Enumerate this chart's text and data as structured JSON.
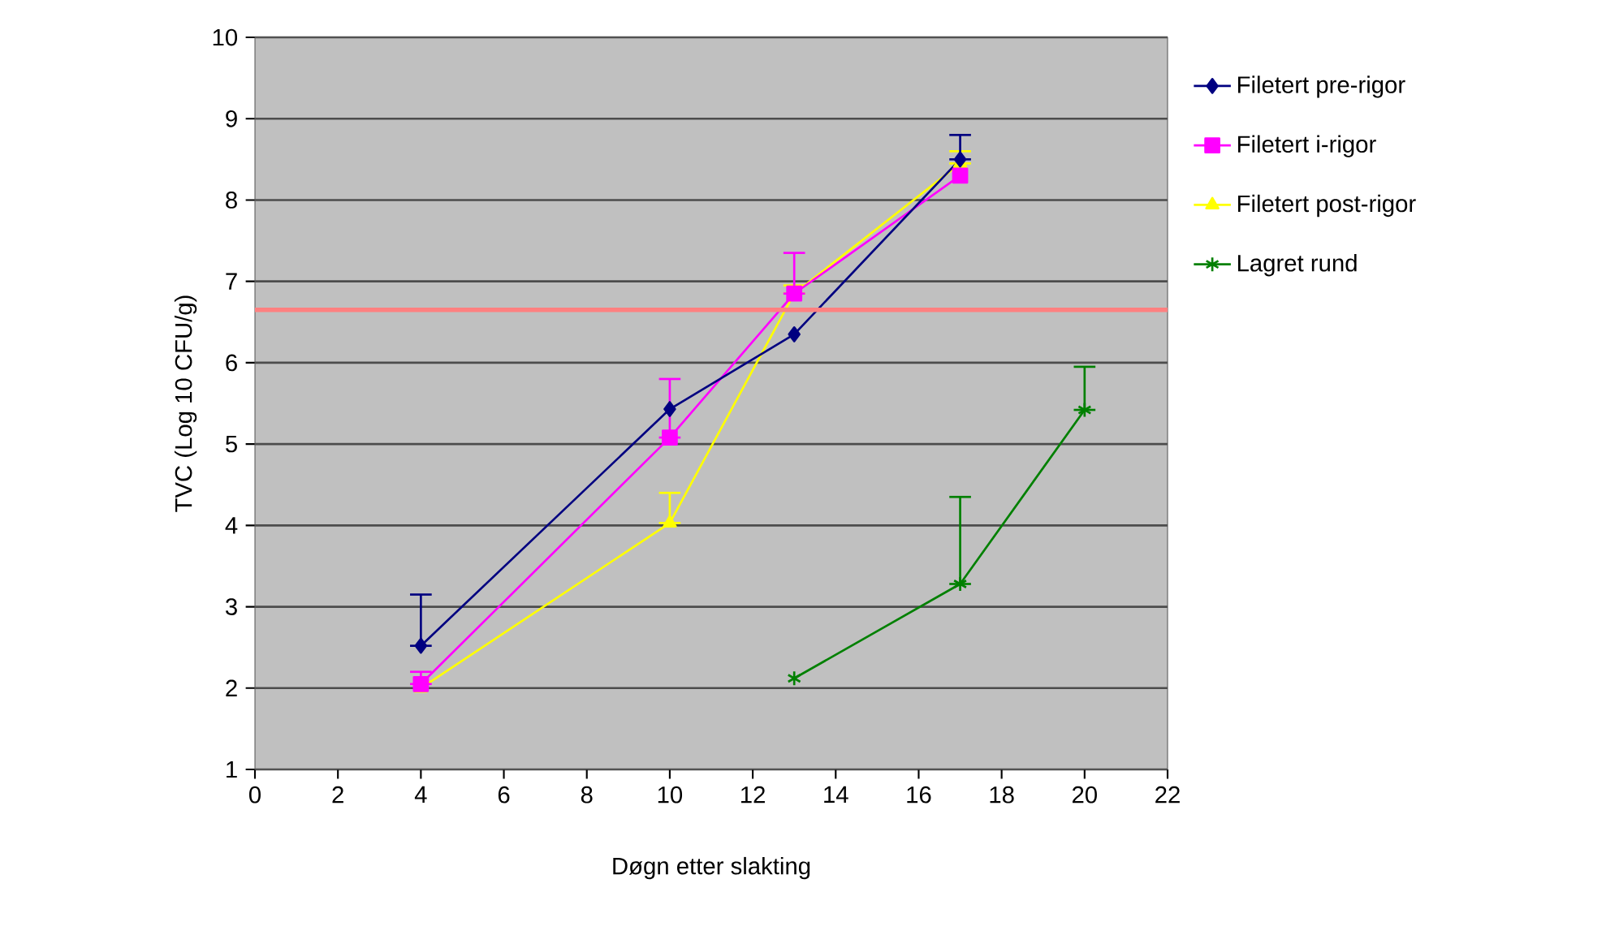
{
  "chart_data": {
    "type": "line",
    "xlabel": "Døgn etter slakting",
    "ylabel": "TVC (Log 10 CFU/g)",
    "xlim": [
      0,
      22
    ],
    "ylim": [
      1,
      10
    ],
    "xticks": [
      0,
      2,
      4,
      6,
      8,
      10,
      12,
      14,
      16,
      18,
      20,
      22
    ],
    "yticks": [
      1,
      2,
      3,
      4,
      5,
      6,
      7,
      8,
      9,
      10
    ],
    "grid": "y",
    "legend": "right",
    "line_style": "solid",
    "series": [
      {
        "name": "Filetert pre-rigor",
        "color": "#000080",
        "marker": "diamond",
        "x": [
          4,
          10,
          13,
          17
        ],
        "values": [
          2.52,
          5.43,
          6.35,
          8.5
        ],
        "errors": [
          [
            2.52,
            3.15
          ],
          null,
          null,
          [
            8.5,
            8.8
          ]
        ]
      },
      {
        "name": "Filetert i-rigor",
        "color": "#ff00ff",
        "marker": "square",
        "x": [
          4,
          10,
          13,
          17
        ],
        "values": [
          2.05,
          5.08,
          6.85,
          8.3
        ],
        "errors": [
          [
            2.05,
            2.2
          ],
          [
            5.08,
            5.8
          ],
          [
            6.85,
            7.35
          ],
          null
        ]
      },
      {
        "name": "Filetert post-rigor",
        "color": "#ffff00",
        "marker": "triangle",
        "x": [
          4,
          10,
          13,
          17
        ],
        "values": [
          2.0,
          4.03,
          6.85,
          8.45
        ],
        "errors": [
          null,
          [
            4.03,
            4.4
          ],
          [
            6.85,
            6.95
          ],
          [
            8.45,
            8.6
          ]
        ]
      },
      {
        "name": "Lagret rund",
        "color": "#008000",
        "marker": "cross",
        "x": [
          13,
          17,
          20
        ],
        "values": [
          2.12,
          3.28,
          5.42
        ],
        "errors": [
          null,
          [
            3.28,
            4.35
          ],
          [
            5.42,
            5.95
          ]
        ]
      }
    ],
    "ref_lines": [
      {
        "axis": "y",
        "value": 6.65,
        "color": "#ff8080"
      }
    ]
  }
}
